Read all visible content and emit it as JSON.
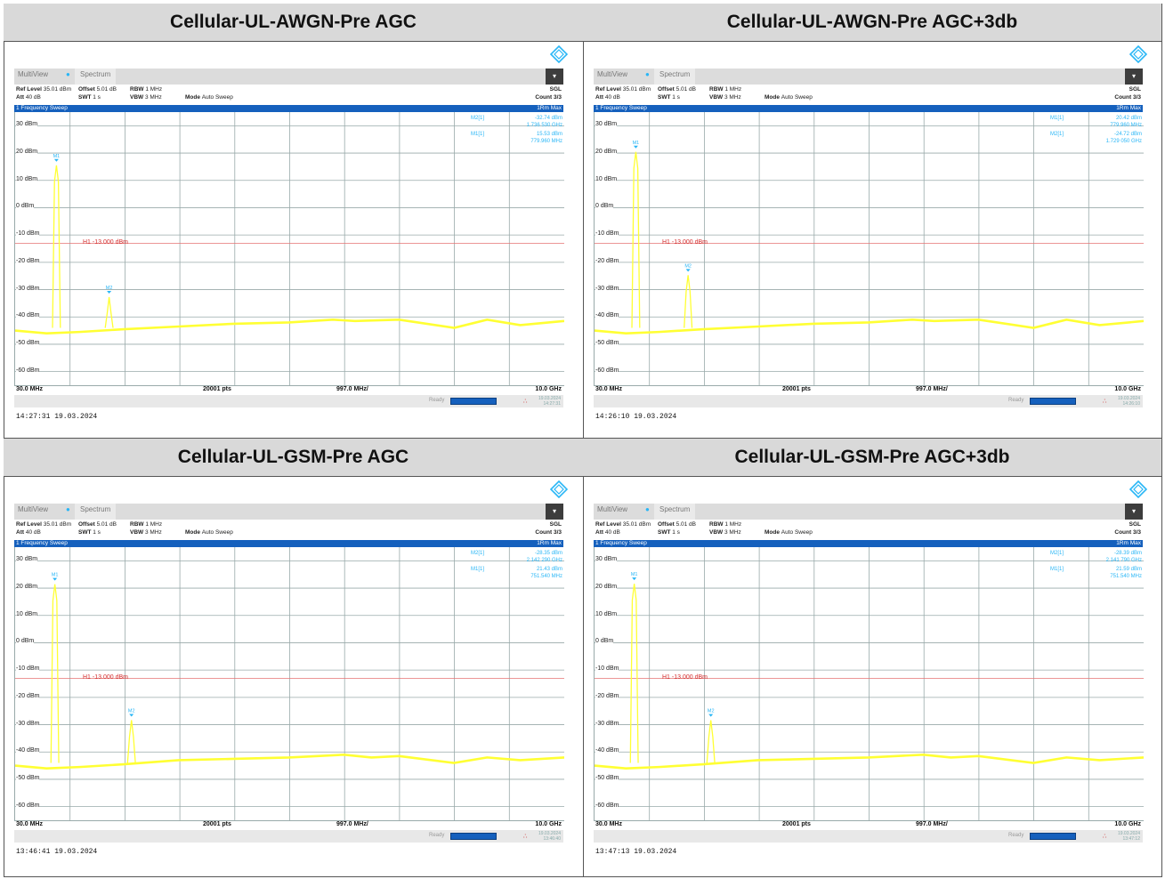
{
  "panels": [
    {
      "title": "Cellular-UL-AWGN-Pre AGC",
      "tabs": [
        "MultiView",
        "Spectrum"
      ],
      "ref_level": "35.01 dBm",
      "offset": "5.01 dB",
      "rbw": "1 MHz",
      "att": "40 dB",
      "swt": "1 s",
      "vbw": "3 MHz",
      "mode": "Auto Sweep",
      "sgl": "SGL",
      "count": "Count 3/3",
      "sweep_label": "1 Frequency Sweep",
      "trace_label": "1Rm Max",
      "h1_label": "H1 -13.000 dBm",
      "markers_table": [
        {
          "name": "M2[1]",
          "level": "-32.74 dBm",
          "freq": "1.736 530 GHz"
        },
        {
          "name": "M1[1]",
          "level": "15.53 dBm",
          "freq": "779.960 MHz"
        }
      ],
      "start_freq": "30.0 MHz",
      "points": "20001 pts",
      "span_div": "997.0 MHz/",
      "stop_freq": "10.0 GHz",
      "status_text": "Ready",
      "date_small": "19.03.2024",
      "time_small": "14:27:31",
      "timestamp": "14:27:31  19.03.2024"
    },
    {
      "title": "Cellular-UL-AWGN-Pre AGC+3db",
      "tabs": [
        "MultiView",
        "Spectrum"
      ],
      "ref_level": "35.01 dBm",
      "offset": "5.01 dB",
      "rbw": "1 MHz",
      "att": "40 dB",
      "swt": "1 s",
      "vbw": "3 MHz",
      "mode": "Auto Sweep",
      "sgl": "SGL",
      "count": "Count 3/3",
      "sweep_label": "1 Frequency Sweep",
      "trace_label": "1Rm Max",
      "h1_label": "H1 -13.000 dBm",
      "markers_table": [
        {
          "name": "M1[1]",
          "level": "20.42 dBm",
          "freq": "779.960 MHz"
        },
        {
          "name": "M2[1]",
          "level": "-24.72 dBm",
          "freq": "1.729 050 GHz"
        }
      ],
      "start_freq": "30.0 MHz",
      "points": "20001 pts",
      "span_div": "997.0 MHz/",
      "stop_freq": "10.0 GHz",
      "status_text": "Ready",
      "date_small": "19.03.2024",
      "time_small": "14:26:10",
      "timestamp": "14:26:10  19.03.2024"
    },
    {
      "title": "Cellular-UL-GSM-Pre AGC",
      "tabs": [
        "MultiView",
        "Spectrum"
      ],
      "ref_level": "35.01 dBm",
      "offset": "5.01 dB",
      "rbw": "1 MHz",
      "att": "40 dB",
      "swt": "1 s",
      "vbw": "3 MHz",
      "mode": "Auto Sweep",
      "sgl": "SGL",
      "count": "Count 3/3",
      "sweep_label": "1 Frequency Sweep",
      "trace_label": "1Rm Max",
      "h1_label": "H1 -13.000 dBm",
      "markers_table": [
        {
          "name": "M2[1]",
          "level": "-28.35 dBm",
          "freq": "2.142 290 GHz"
        },
        {
          "name": "M1[1]",
          "level": "21.43 dBm",
          "freq": "751.540 MHz"
        }
      ],
      "start_freq": "30.0 MHz",
      "points": "20001 pts",
      "span_div": "997.0 MHz/",
      "stop_freq": "10.0 GHz",
      "status_text": "Ready",
      "date_small": "19.03.2024",
      "time_small": "13:46:40",
      "timestamp": "13:46:41  19.03.2024"
    },
    {
      "title": "Cellular-UL-GSM-Pre AGC+3db",
      "tabs": [
        "MultiView",
        "Spectrum"
      ],
      "ref_level": "35.01 dBm",
      "offset": "5.01 dB",
      "rbw": "1 MHz",
      "att": "40 dB",
      "swt": "1 s",
      "vbw": "3 MHz",
      "mode": "Auto Sweep",
      "sgl": "SGL",
      "count": "Count 3/3",
      "sweep_label": "1 Frequency Sweep",
      "trace_label": "1Rm Max",
      "h1_label": "H1 -13.000 dBm",
      "markers_table": [
        {
          "name": "M2[1]",
          "level": "-28.39 dBm",
          "freq": "2.141 790 GHz"
        },
        {
          "name": "M1[1]",
          "level": "21.59 dBm",
          "freq": "751.540 MHz"
        }
      ],
      "start_freq": "30.0 MHz",
      "points": "20001 pts",
      "span_div": "997.0 MHz/",
      "stop_freq": "10.0 GHz",
      "status_text": "Ready",
      "date_small": "19.03.2024",
      "time_small": "13:47:12",
      "timestamp": "13:47:13  19.03.2024"
    }
  ],
  "chart_data": [
    {
      "type": "line",
      "xlabel": "",
      "ylabel": "",
      "x_unit": "GHz",
      "xlim": [
        0.03,
        10.0
      ],
      "y_unit": "dBm",
      "ylim": [
        -65,
        35
      ],
      "y_ticks": [
        "30 dBm",
        "20 dBm",
        "10 dBm",
        "0 dBm",
        "-10 dBm",
        "-20 dBm",
        "-30 dBm",
        "-40 dBm",
        "-50 dBm",
        "-60 dBm"
      ],
      "h1_level": -13.0,
      "markers": [
        {
          "name": "M1",
          "freq_ghz": 0.78,
          "level": 15.53
        },
        {
          "name": "M2",
          "freq_ghz": 1.7365,
          "level": -32.74
        }
      ],
      "floor": [
        [
          0.03,
          -45
        ],
        [
          0.6,
          -46
        ],
        [
          1.2,
          -45.5
        ],
        [
          2.0,
          -44.5
        ],
        [
          3.0,
          -43.5
        ],
        [
          4.0,
          -42.5
        ],
        [
          5.0,
          -42
        ],
        [
          5.8,
          -41
        ],
        [
          6.2,
          -41.5
        ],
        [
          7.0,
          -41
        ],
        [
          8.0,
          -44
        ],
        [
          8.6,
          -41
        ],
        [
          9.2,
          -43
        ],
        [
          10.0,
          -41.5
        ]
      ],
      "color": "#ffff33"
    },
    {
      "type": "line",
      "xlabel": "",
      "ylabel": "",
      "x_unit": "GHz",
      "xlim": [
        0.03,
        10.0
      ],
      "y_unit": "dBm",
      "ylim": [
        -65,
        35
      ],
      "y_ticks": [
        "30 dBm",
        "20 dBm",
        "10 dBm",
        "0 dBm",
        "-10 dBm",
        "-20 dBm",
        "-30 dBm",
        "-40 dBm",
        "-50 dBm",
        "-60 dBm"
      ],
      "h1_level": -13.0,
      "markers": [
        {
          "name": "M1",
          "freq_ghz": 0.78,
          "level": 20.42
        },
        {
          "name": "M2",
          "freq_ghz": 1.729,
          "level": -24.72
        }
      ],
      "floor": [
        [
          0.03,
          -45
        ],
        [
          0.6,
          -46
        ],
        [
          1.2,
          -45.5
        ],
        [
          2.0,
          -44.5
        ],
        [
          3.0,
          -43.5
        ],
        [
          4.0,
          -42.5
        ],
        [
          5.0,
          -42
        ],
        [
          5.8,
          -41
        ],
        [
          6.2,
          -41.5
        ],
        [
          7.0,
          -41
        ],
        [
          8.0,
          -44
        ],
        [
          8.6,
          -41
        ],
        [
          9.2,
          -43
        ],
        [
          10.0,
          -41.5
        ]
      ],
      "color": "#ffff33"
    },
    {
      "type": "line",
      "xlabel": "",
      "ylabel": "",
      "x_unit": "GHz",
      "xlim": [
        0.03,
        10.0
      ],
      "y_unit": "dBm",
      "ylim": [
        -65,
        35
      ],
      "y_ticks": [
        "30 dBm",
        "20 dBm",
        "10 dBm",
        "0 dBm",
        "-10 dBm",
        "-20 dBm",
        "-30 dBm",
        "-40 dBm",
        "-50 dBm",
        "-60 dBm"
      ],
      "h1_level": -13.0,
      "markers": [
        {
          "name": "M1",
          "freq_ghz": 0.7515,
          "level": 21.43
        },
        {
          "name": "M2",
          "freq_ghz": 2.1423,
          "level": -28.35
        }
      ],
      "floor": [
        [
          0.03,
          -45
        ],
        [
          0.6,
          -46
        ],
        [
          1.2,
          -45.5
        ],
        [
          2.0,
          -44.5
        ],
        [
          3.0,
          -43
        ],
        [
          4.0,
          -42.5
        ],
        [
          5.0,
          -42
        ],
        [
          6.0,
          -41
        ],
        [
          6.5,
          -42
        ],
        [
          7.0,
          -41.5
        ],
        [
          8.0,
          -44
        ],
        [
          8.6,
          -42
        ],
        [
          9.2,
          -43
        ],
        [
          10.0,
          -42
        ]
      ],
      "color": "#ffff33"
    },
    {
      "type": "line",
      "xlabel": "",
      "ylabel": "",
      "x_unit": "GHz",
      "xlim": [
        0.03,
        10.0
      ],
      "y_unit": "dBm",
      "ylim": [
        -65,
        35
      ],
      "y_ticks": [
        "30 dBm",
        "20 dBm",
        "10 dBm",
        "0 dBm",
        "-10 dBm",
        "-20 dBm",
        "-30 dBm",
        "-40 dBm",
        "-50 dBm",
        "-60 dBm"
      ],
      "h1_level": -13.0,
      "markers": [
        {
          "name": "M1",
          "freq_ghz": 0.7515,
          "level": 21.59
        },
        {
          "name": "M2",
          "freq_ghz": 2.1418,
          "level": -28.39
        }
      ],
      "floor": [
        [
          0.03,
          -45
        ],
        [
          0.6,
          -46
        ],
        [
          1.2,
          -45.5
        ],
        [
          2.0,
          -44.5
        ],
        [
          3.0,
          -43
        ],
        [
          4.0,
          -42.5
        ],
        [
          5.0,
          -42
        ],
        [
          6.0,
          -41
        ],
        [
          6.5,
          -42
        ],
        [
          7.0,
          -41.5
        ],
        [
          8.0,
          -44
        ],
        [
          8.6,
          -42
        ],
        [
          9.2,
          -43
        ],
        [
          10.0,
          -42
        ]
      ],
      "color": "#ffff33"
    }
  ]
}
